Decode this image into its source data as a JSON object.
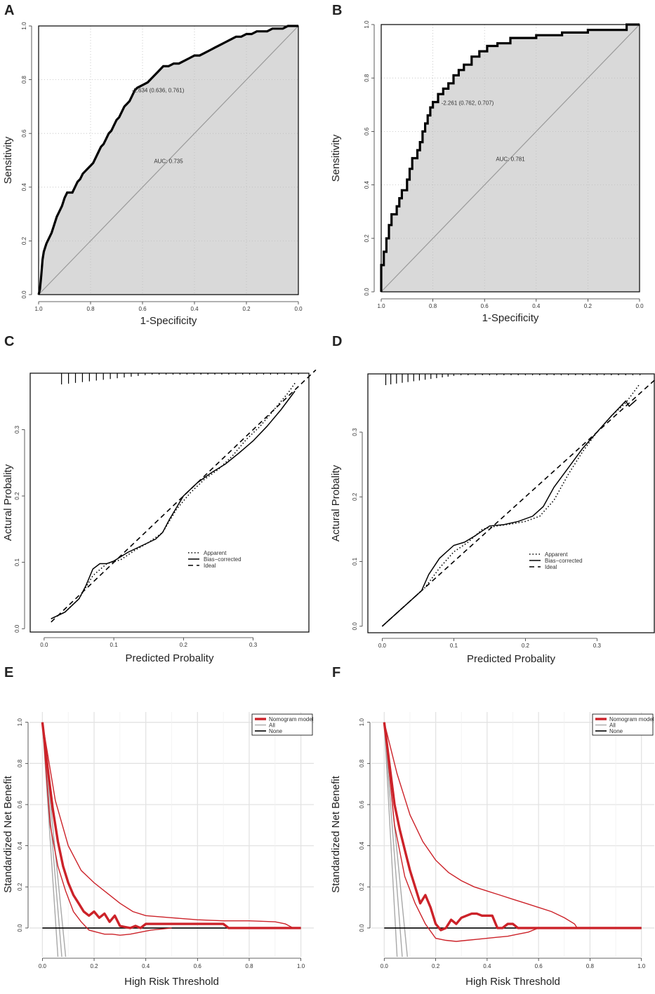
{
  "panels": [
    {
      "label": "A"
    },
    {
      "label": "B"
    },
    {
      "label": "C"
    },
    {
      "label": "D"
    },
    {
      "label": "E"
    },
    {
      "label": "F"
    }
  ],
  "colors": {
    "red": "#cc2229",
    "gray": "#a8a8a8",
    "fill": "#d9d9d9",
    "black": "#000000"
  },
  "chart_data": [
    {
      "type": "line",
      "panel": "A",
      "xlabel": "1-Specificity",
      "ylabel": "Sensitivity",
      "xlim": [
        1,
        0
      ],
      "ylim": [
        0,
        1
      ],
      "xticks": [
        "1.0",
        "0.8",
        "0.6",
        "0.4",
        "0.2",
        "0.0"
      ],
      "yticks": [
        "0.0",
        "0.2",
        "0.4",
        "0.6",
        "0.8",
        "1.0"
      ],
      "specificity": [
        1,
        0.995,
        0.99,
        0.985,
        0.98,
        0.97,
        0.96,
        0.95,
        0.94,
        0.93,
        0.92,
        0.91,
        0.9,
        0.89,
        0.88,
        0.87,
        0.86,
        0.85,
        0.84,
        0.83,
        0.82,
        0.81,
        0.8,
        0.79,
        0.78,
        0.77,
        0.76,
        0.75,
        0.74,
        0.73,
        0.72,
        0.71,
        0.7,
        0.69,
        0.68,
        0.67,
        0.66,
        0.65,
        0.64,
        0.63,
        0.62,
        0.6,
        0.58,
        0.56,
        0.54,
        0.52,
        0.5,
        0.48,
        0.46,
        0.44,
        0.42,
        0.4,
        0.38,
        0.36,
        0.34,
        0.32,
        0.3,
        0.28,
        0.26,
        0.24,
        0.22,
        0.2,
        0.18,
        0.16,
        0.14,
        0.12,
        0.1,
        0.08,
        0.06,
        0.04,
        0.02,
        0
      ],
      "sensitivity": [
        0,
        0.02,
        0.07,
        0.13,
        0.16,
        0.19,
        0.21,
        0.23,
        0.26,
        0.29,
        0.31,
        0.33,
        0.36,
        0.38,
        0.38,
        0.38,
        0.4,
        0.42,
        0.43,
        0.45,
        0.46,
        0.47,
        0.48,
        0.49,
        0.51,
        0.53,
        0.55,
        0.56,
        0.58,
        0.6,
        0.61,
        0.63,
        0.65,
        0.66,
        0.68,
        0.7,
        0.71,
        0.72,
        0.74,
        0.76,
        0.77,
        0.78,
        0.79,
        0.81,
        0.83,
        0.85,
        0.85,
        0.86,
        0.86,
        0.87,
        0.88,
        0.89,
        0.89,
        0.9,
        0.91,
        0.92,
        0.93,
        0.94,
        0.95,
        0.96,
        0.96,
        0.97,
        0.97,
        0.98,
        0.98,
        0.98,
        0.99,
        0.99,
        0.99,
        1,
        1,
        1
      ],
      "threshold_label": "-2.634 (0.636, 0.761)",
      "auc_label": "AUC: 0.735"
    },
    {
      "type": "line",
      "panel": "B",
      "xlabel": "1-Specificity",
      "ylabel": "Sensitivity",
      "xlim": [
        1,
        0
      ],
      "ylim": [
        0,
        1
      ],
      "xticks": [
        "1.0",
        "0.8",
        "0.6",
        "0.4",
        "0.2",
        "0.0"
      ],
      "yticks": [
        "0.0",
        "0.2",
        "0.4",
        "0.6",
        "0.8",
        "1.0"
      ],
      "specificity": [
        1,
        1,
        0.99,
        0.99,
        0.98,
        0.98,
        0.97,
        0.97,
        0.96,
        0.96,
        0.94,
        0.94,
        0.93,
        0.93,
        0.92,
        0.92,
        0.9,
        0.9,
        0.89,
        0.89,
        0.88,
        0.88,
        0.86,
        0.86,
        0.85,
        0.85,
        0.84,
        0.84,
        0.83,
        0.83,
        0.82,
        0.82,
        0.81,
        0.81,
        0.8,
        0.8,
        0.78,
        0.78,
        0.76,
        0.76,
        0.74,
        0.74,
        0.72,
        0.72,
        0.7,
        0.7,
        0.68,
        0.68,
        0.65,
        0.65,
        0.62,
        0.62,
        0.59,
        0.59,
        0.55,
        0.55,
        0.5,
        0.5,
        0.4,
        0.4,
        0.3,
        0.3,
        0.2,
        0.2,
        0.05,
        0.05,
        0
      ],
      "sensitivity": [
        0,
        0.1,
        0.1,
        0.15,
        0.15,
        0.2,
        0.2,
        0.25,
        0.25,
        0.29,
        0.29,
        0.32,
        0.32,
        0.35,
        0.35,
        0.38,
        0.38,
        0.42,
        0.42,
        0.46,
        0.46,
        0.5,
        0.5,
        0.53,
        0.53,
        0.56,
        0.56,
        0.6,
        0.6,
        0.63,
        0.63,
        0.66,
        0.66,
        0.69,
        0.69,
        0.71,
        0.71,
        0.74,
        0.74,
        0.76,
        0.76,
        0.78,
        0.78,
        0.81,
        0.81,
        0.83,
        0.83,
        0.85,
        0.85,
        0.88,
        0.88,
        0.9,
        0.9,
        0.92,
        0.92,
        0.93,
        0.93,
        0.95,
        0.95,
        0.96,
        0.96,
        0.97,
        0.97,
        0.98,
        0.98,
        1,
        1
      ],
      "threshold_label": "-2.261 (0.762, 0.707)",
      "auc_label": "AUC: 0.781"
    },
    {
      "type": "line",
      "panel": "C",
      "xlabel": "Predicted Probality",
      "ylabel": "Actural Probality",
      "xlim": [
        -0.02,
        0.38
      ],
      "ylim": [
        -0.005,
        0.385
      ],
      "xticks": [
        "0.0",
        "0.1",
        "0.2",
        "0.3"
      ],
      "yticks": [
        "0.0",
        "0.1",
        "0.2",
        "0.3"
      ],
      "legend": [
        "Apparent",
        "Bias−corrected",
        "Ideal"
      ],
      "series": [
        {
          "name": "Apparent",
          "x": [
            0.01,
            0.03,
            0.05,
            0.07,
            0.09,
            0.11,
            0.13,
            0.15,
            0.17,
            0.19,
            0.21,
            0.23,
            0.25,
            0.27,
            0.29,
            0.31,
            0.33,
            0.35,
            0.36
          ],
          "y": [
            0.015,
            0.025,
            0.045,
            0.08,
            0.098,
            0.104,
            0.118,
            0.13,
            0.145,
            0.18,
            0.205,
            0.225,
            0.24,
            0.26,
            0.285,
            0.305,
            0.33,
            0.355,
            0.37
          ]
        },
        {
          "name": "Bias-corrected",
          "x": [
            0.01,
            0.03,
            0.05,
            0.06,
            0.07,
            0.08,
            0.09,
            0.1,
            0.12,
            0.14,
            0.16,
            0.17,
            0.18,
            0.2,
            0.22,
            0.24,
            0.26,
            0.28,
            0.3,
            0.32,
            0.34,
            0.36
          ],
          "y": [
            0.015,
            0.025,
            0.045,
            0.065,
            0.09,
            0.098,
            0.098,
            0.102,
            0.115,
            0.125,
            0.135,
            0.145,
            0.165,
            0.2,
            0.22,
            0.235,
            0.248,
            0.265,
            0.283,
            0.305,
            0.33,
            0.358
          ]
        },
        {
          "name": "Ideal",
          "x": [
            0.01,
            0.39
          ],
          "y": [
            0.01,
            0.39
          ]
        }
      ],
      "rug": [
        0.025,
        0.035,
        0.045,
        0.055,
        0.065,
        0.075,
        0.085,
        0.095,
        0.105,
        0.115,
        0.125,
        0.135,
        0.145,
        0.155,
        0.165,
        0.175,
        0.185,
        0.195,
        0.205,
        0.215,
        0.225,
        0.235,
        0.245,
        0.255,
        0.265,
        0.275,
        0.285,
        0.295,
        0.305,
        0.315,
        0.325,
        0.335,
        0.345,
        0.355,
        0.365
      ]
    },
    {
      "type": "line",
      "panel": "D",
      "xlabel": "Predicted Probality",
      "ylabel": "Actural Probality",
      "xlim": [
        -0.02,
        0.38
      ],
      "ylim": [
        -0.01,
        0.39
      ],
      "xticks": [
        "0.0",
        "0.1",
        "0.2",
        "0.3"
      ],
      "yticks": [
        "0.0",
        "0.1",
        "0.2",
        "0.3"
      ],
      "legend": [
        "Apparent",
        "Bias−corrected",
        "Ideal"
      ],
      "series": [
        {
          "name": "Apparent",
          "x": [
            0.0,
            0.02,
            0.04,
            0.06,
            0.08,
            0.1,
            0.12,
            0.14,
            0.16,
            0.18,
            0.2,
            0.22,
            0.24,
            0.26,
            0.28,
            0.3,
            0.32,
            0.34,
            0.36
          ],
          "y": [
            0.0,
            0.02,
            0.04,
            0.06,
            0.09,
            0.115,
            0.13,
            0.15,
            0.155,
            0.158,
            0.162,
            0.17,
            0.195,
            0.235,
            0.27,
            0.3,
            0.325,
            0.345,
            0.375
          ]
        },
        {
          "name": "Bias-corrected",
          "x": [
            0.0,
            0.02,
            0.04,
            0.055,
            0.065,
            0.08,
            0.1,
            0.115,
            0.13,
            0.15,
            0.17,
            0.19,
            0.21,
            0.225,
            0.24,
            0.26,
            0.28,
            0.3,
            0.32,
            0.34,
            0.345,
            0.355
          ],
          "y": [
            0.0,
            0.02,
            0.04,
            0.055,
            0.08,
            0.105,
            0.125,
            0.13,
            0.14,
            0.155,
            0.157,
            0.162,
            0.17,
            0.185,
            0.215,
            0.245,
            0.275,
            0.3,
            0.325,
            0.348,
            0.34,
            0.35
          ]
        },
        {
          "name": "Ideal",
          "x": [
            0.0,
            0.39
          ],
          "y": [
            0.0,
            0.39
          ]
        }
      ],
      "rug": [
        0.005,
        0.012,
        0.02,
        0.028,
        0.036,
        0.044,
        0.052,
        0.06,
        0.068,
        0.076,
        0.084,
        0.092,
        0.1,
        0.11,
        0.12,
        0.13,
        0.14,
        0.15,
        0.16,
        0.17,
        0.18,
        0.19,
        0.2,
        0.21,
        0.22,
        0.23,
        0.24,
        0.25,
        0.26,
        0.27,
        0.28,
        0.29,
        0.3,
        0.31,
        0.32,
        0.33,
        0.34,
        0.35,
        0.36
      ]
    },
    {
      "type": "line",
      "panel": "E",
      "xlabel": "High Risk Threshold",
      "ylabel": "Standardized Net Benefit",
      "xlim": [
        -0.05,
        1.05
      ],
      "ylim": [
        -0.14,
        1.05
      ],
      "xticks": [
        "0.0",
        "0.2",
        "0.4",
        "0.6",
        "0.8",
        "1.0"
      ],
      "yticks": [
        "0.0",
        "0.2",
        "0.4",
        "0.6",
        "0.8",
        "1.0"
      ],
      "legend": [
        "Nomogram model",
        "All",
        "None"
      ],
      "series": [
        {
          "name": "Nomogram model",
          "x": [
            0,
            0.02,
            0.04,
            0.06,
            0.08,
            0.1,
            0.12,
            0.14,
            0.16,
            0.18,
            0.2,
            0.22,
            0.24,
            0.26,
            0.28,
            0.3,
            0.32,
            0.34,
            0.36,
            0.38,
            0.4,
            0.42,
            0.45,
            0.5,
            0.6,
            0.7,
            0.72,
            0.8,
            0.9,
            0.94,
            1.0
          ],
          "y": [
            1,
            0.78,
            0.58,
            0.42,
            0.3,
            0.22,
            0.16,
            0.12,
            0.08,
            0.06,
            0.08,
            0.05,
            0.07,
            0.03,
            0.06,
            0.01,
            0.005,
            0.0,
            0.01,
            0.0,
            0.02,
            0.02,
            0.02,
            0.02,
            0.02,
            0.02,
            0.0,
            0.0,
            0.0,
            0.0,
            0.0
          ]
        },
        {
          "name": "Upper CI",
          "x": [
            0,
            0.05,
            0.1,
            0.15,
            0.2,
            0.25,
            0.3,
            0.35,
            0.4,
            0.5,
            0.6,
            0.7,
            0.8,
            0.9,
            0.94,
            0.97
          ],
          "y": [
            1,
            0.62,
            0.4,
            0.28,
            0.22,
            0.17,
            0.12,
            0.08,
            0.06,
            0.05,
            0.04,
            0.035,
            0.035,
            0.03,
            0.02,
            0.0
          ]
        },
        {
          "name": "Lower CI",
          "x": [
            0,
            0.03,
            0.06,
            0.09,
            0.12,
            0.15,
            0.18,
            0.21,
            0.24,
            0.27,
            0.3,
            0.34,
            0.38,
            0.42,
            0.46,
            0.5
          ],
          "y": [
            1,
            0.5,
            0.3,
            0.18,
            0.08,
            0.03,
            -0.01,
            -0.02,
            -0.03,
            -0.03,
            -0.035,
            -0.03,
            -0.02,
            -0.01,
            -0.005,
            0.0
          ]
        },
        {
          "name": "All",
          "lines": [
            [
              [
                0,
                1
              ],
              [
                0.06,
                -0.14
              ]
            ],
            [
              [
                0,
                1
              ],
              [
                0.075,
                -0.14
              ]
            ],
            [
              [
                0,
                1
              ],
              [
                0.09,
                -0.14
              ]
            ]
          ]
        },
        {
          "name": "None",
          "x": [
            0,
            1
          ],
          "y": [
            0,
            0
          ]
        }
      ]
    },
    {
      "type": "line",
      "panel": "F",
      "xlabel": "High Risk Threshold",
      "ylabel": "Standardized Net Benefit",
      "xlim": [
        -0.05,
        1.05
      ],
      "ylim": [
        -0.14,
        1.05
      ],
      "xticks": [
        "0.0",
        "0.2",
        "0.4",
        "0.6",
        "0.8",
        "1.0"
      ],
      "yticks": [
        "0.0",
        "0.2",
        "0.4",
        "0.6",
        "0.8",
        "1.0"
      ],
      "legend": [
        "Nomogram model",
        "All",
        "None"
      ],
      "series": [
        {
          "name": "Nomogram model",
          "x": [
            0,
            0.02,
            0.04,
            0.06,
            0.08,
            0.1,
            0.12,
            0.14,
            0.16,
            0.18,
            0.2,
            0.22,
            0.24,
            0.26,
            0.28,
            0.3,
            0.32,
            0.34,
            0.36,
            0.38,
            0.4,
            0.42,
            0.44,
            0.46,
            0.48,
            0.5,
            0.52,
            0.54,
            0.56,
            0.58,
            0.6,
            0.7,
            0.8,
            1.0
          ],
          "y": [
            1,
            0.8,
            0.6,
            0.48,
            0.38,
            0.28,
            0.2,
            0.12,
            0.16,
            0.1,
            0.02,
            -0.01,
            0.0,
            0.04,
            0.02,
            0.05,
            0.06,
            0.07,
            0.07,
            0.06,
            0.06,
            0.06,
            0.0,
            0.0,
            0.02,
            0.02,
            0.0,
            0.0,
            0.0,
            0.0,
            0.0,
            0.0,
            0.0,
            0.0
          ]
        },
        {
          "name": "Upper CI",
          "x": [
            0,
            0.05,
            0.1,
            0.15,
            0.2,
            0.25,
            0.3,
            0.35,
            0.4,
            0.45,
            0.5,
            0.55,
            0.6,
            0.65,
            0.7,
            0.74,
            0.75
          ],
          "y": [
            1,
            0.75,
            0.55,
            0.42,
            0.33,
            0.27,
            0.23,
            0.2,
            0.18,
            0.16,
            0.14,
            0.12,
            0.1,
            0.08,
            0.05,
            0.02,
            0.0
          ]
        },
        {
          "name": "Lower CI",
          "x": [
            0,
            0.04,
            0.08,
            0.12,
            0.16,
            0.2,
            0.24,
            0.28,
            0.32,
            0.36,
            0.4,
            0.44,
            0.48,
            0.52,
            0.56,
            0.6,
            0.62
          ],
          "y": [
            1,
            0.5,
            0.25,
            0.12,
            0.02,
            -0.05,
            -0.06,
            -0.065,
            -0.06,
            -0.055,
            -0.05,
            -0.045,
            -0.04,
            -0.03,
            -0.02,
            0.0,
            0.0
          ]
        },
        {
          "name": "All",
          "lines": [
            [
              [
                0,
                1
              ],
              [
                0.05,
                -0.14
              ]
            ],
            [
              [
                0,
                1
              ],
              [
                0.07,
                -0.14
              ]
            ],
            [
              [
                0,
                1
              ],
              [
                0.09,
                -0.14
              ]
            ]
          ]
        },
        {
          "name": "None",
          "x": [
            0,
            1
          ],
          "y": [
            0,
            0
          ]
        }
      ]
    }
  ]
}
